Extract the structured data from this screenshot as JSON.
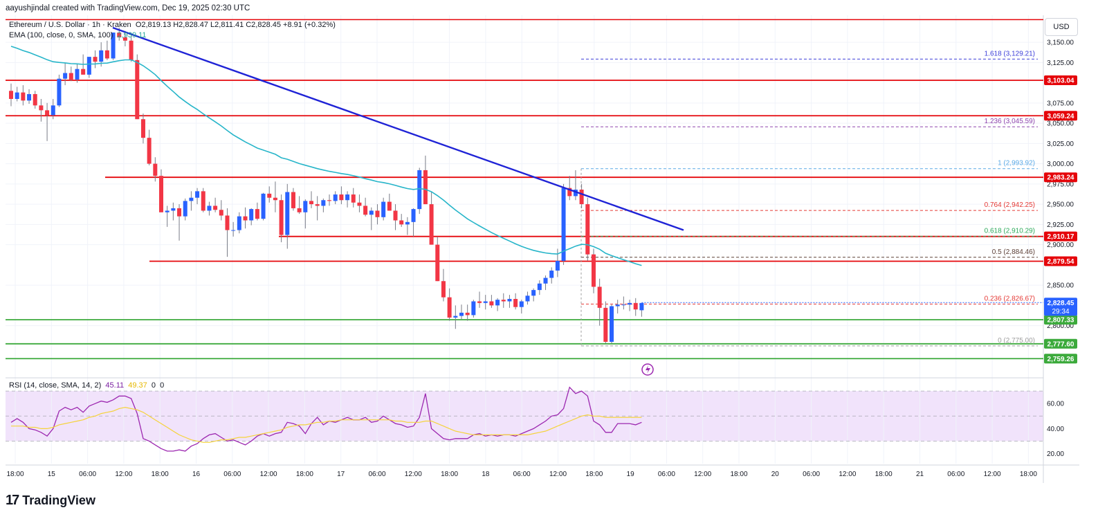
{
  "header": {
    "credit": "aayushjindal created with TradingView.com, Dec 19, 2025 02:30 UTC",
    "symbol": "Ethereum / U.S. Dollar · 1h · Kraken",
    "ohlc": "O2,819.13 H2,828.47 L2,811.41 C2,828.45 +8.91 (+0.32%)",
    "ema_label": "EMA (100, close, 0, SMA, 100)",
    "ema_value": "2,939.11",
    "currency_button": "USD"
  },
  "rsi_legend": {
    "label": "RSI (14, close, SMA, 14, 2)",
    "value": "45.11",
    "sma_value": "49.37",
    "extra1": "0",
    "extra2": "0"
  },
  "brand": {
    "name": "TradingView"
  },
  "colors": {
    "up": "#2962ff",
    "down": "#f23645",
    "ema": "#26b5c9",
    "trendline": "#1f23d6",
    "resistance": "#e5050a",
    "support": "#3caa3c",
    "rsi_line": "#9c27b0",
    "rsi_sma": "#f5d33a",
    "rsi_band": "#f1e3fb"
  },
  "chart_data": {
    "type": "candlestick",
    "title": "Ethereum / U.S. Dollar · 1h · Kraken",
    "price_axis_ticks": [
      "3,150.00",
      "3,125.00",
      "3,075.00",
      "3,050.00",
      "3,025.00",
      "3,000.00",
      "2,975.00",
      "2,950.00",
      "2,925.00",
      "2,900.00",
      "2,850.00",
      "2,800.00"
    ],
    "time_axis_ticks": [
      "18:00",
      "15",
      "06:00",
      "12:00",
      "18:00",
      "16",
      "06:00",
      "12:00",
      "18:00",
      "17",
      "06:00",
      "12:00",
      "18:00",
      "18",
      "06:00",
      "12:00",
      "18:00",
      "19",
      "06:00",
      "12:00",
      "18:00",
      "20",
      "06:00",
      "12:00",
      "18:00",
      "21",
      "06:00",
      "12:00",
      "18:00"
    ],
    "candles": [
      [
        3090,
        3099,
        3071,
        3080
      ],
      [
        3080,
        3095,
        3077,
        3088
      ],
      [
        3088,
        3097,
        3072,
        3078
      ],
      [
        3078,
        3092,
        3074,
        3086
      ],
      [
        3086,
        3090,
        3068,
        3072
      ],
      [
        3072,
        3080,
        3052,
        3066
      ],
      [
        3066,
        3075,
        3028,
        3060
      ],
      [
        3060,
        3080,
        3055,
        3072
      ],
      [
        3072,
        3110,
        3070,
        3105
      ],
      [
        3105,
        3125,
        3097,
        3112
      ],
      [
        3112,
        3120,
        3102,
        3104
      ],
      [
        3104,
        3123,
        3100,
        3117
      ],
      [
        3117,
        3135,
        3110,
        3110
      ],
      [
        3110,
        3132,
        3106,
        3132
      ],
      [
        3132,
        3140,
        3118,
        3126
      ],
      [
        3126,
        3150,
        3120,
        3140
      ],
      [
        3140,
        3152,
        3128,
        3130
      ],
      [
        3130,
        3162,
        3128,
        3162
      ],
      [
        3162,
        3168,
        3152,
        3156
      ],
      [
        3156,
        3164,
        3145,
        3152
      ],
      [
        3152,
        3158,
        3126,
        3128
      ],
      [
        3128,
        3135,
        3055,
        3055
      ],
      [
        3055,
        3062,
        3025,
        3032
      ],
      [
        3032,
        3042,
        2998,
        3000
      ],
      [
        3000,
        3008,
        2978,
        2985
      ],
      [
        2985,
        2993,
        2940,
        2940
      ],
      [
        2940,
        2948,
        2922,
        2942
      ],
      [
        2942,
        2952,
        2930,
        2945
      ],
      [
        2945,
        2950,
        2905,
        2935
      ],
      [
        2935,
        2957,
        2930,
        2954
      ],
      [
        2954,
        2966,
        2942,
        2958
      ],
      [
        2958,
        2970,
        2950,
        2966
      ],
      [
        2966,
        2970,
        2940,
        2942
      ],
      [
        2942,
        2953,
        2936,
        2948
      ],
      [
        2948,
        2958,
        2940,
        2943
      ],
      [
        2943,
        2955,
        2930,
        2936
      ],
      [
        2936,
        2945,
        2885,
        2918
      ],
      [
        2918,
        2928,
        2910,
        2918
      ],
      [
        2918,
        2940,
        2914,
        2935
      ],
      [
        2935,
        2946,
        2920,
        2930
      ],
      [
        2930,
        2945,
        2924,
        2944
      ],
      [
        2944,
        2952,
        2930,
        2932
      ],
      [
        2932,
        2964,
        2930,
        2963
      ],
      [
        2963,
        2972,
        2952,
        2958
      ],
      [
        2958,
        2978,
        2940,
        2955
      ],
      [
        2955,
        2962,
        2903,
        2912
      ],
      [
        2912,
        2975,
        2895,
        2965
      ],
      [
        2965,
        2970,
        2942,
        2945
      ],
      [
        2945,
        2960,
        2938,
        2940
      ],
      [
        2940,
        2956,
        2920,
        2954
      ],
      [
        2954,
        2966,
        2945,
        2950
      ],
      [
        2950,
        2960,
        2930,
        2948
      ],
      [
        2948,
        2957,
        2940,
        2955
      ],
      [
        2955,
        2962,
        2948,
        2954
      ],
      [
        2954,
        2966,
        2950,
        2962
      ],
      [
        2962,
        2972,
        2950,
        2955
      ],
      [
        2955,
        2966,
        2946,
        2962
      ],
      [
        2962,
        2970,
        2946,
        2952
      ],
      [
        2952,
        2962,
        2940,
        2948
      ],
      [
        2948,
        2958,
        2935,
        2937
      ],
      [
        2937,
        2946,
        2918,
        2942
      ],
      [
        2942,
        2950,
        2925,
        2934
      ],
      [
        2934,
        2958,
        2930,
        2953
      ],
      [
        2953,
        2963,
        2942,
        2942
      ],
      [
        2942,
        2950,
        2918,
        2930
      ],
      [
        2930,
        2938,
        2922,
        2925
      ],
      [
        2925,
        2934,
        2912,
        2928
      ],
      [
        2928,
        2945,
        2910,
        2944
      ],
      [
        2944,
        2995,
        2938,
        2992
      ],
      [
        2992,
        3010,
        2950,
        2950
      ],
      [
        2950,
        2965,
        2900,
        2900
      ],
      [
        2900,
        2910,
        2855,
        2855
      ],
      [
        2855,
        2870,
        2830,
        2835
      ],
      [
        2835,
        2846,
        2806,
        2810
      ],
      [
        2810,
        2825,
        2796,
        2812
      ],
      [
        2812,
        2826,
        2808,
        2816
      ],
      [
        2816,
        2826,
        2806,
        2813
      ],
      [
        2813,
        2832,
        2810,
        2830
      ],
      [
        2830,
        2842,
        2822,
        2828
      ],
      [
        2828,
        2838,
        2820,
        2830
      ],
      [
        2830,
        2838,
        2822,
        2825
      ],
      [
        2825,
        2834,
        2818,
        2832
      ],
      [
        2832,
        2840,
        2822,
        2830
      ],
      [
        2830,
        2838,
        2822,
        2833
      ],
      [
        2833,
        2840,
        2820,
        2823
      ],
      [
        2823,
        2832,
        2815,
        2830
      ],
      [
        2830,
        2842,
        2826,
        2837
      ],
      [
        2837,
        2846,
        2830,
        2844
      ],
      [
        2844,
        2856,
        2838,
        2852
      ],
      [
        2852,
        2862,
        2844,
        2859
      ],
      [
        2859,
        2872,
        2852,
        2868
      ],
      [
        2868,
        2895,
        2860,
        2880
      ],
      [
        2880,
        2975,
        2875,
        2970
      ],
      [
        2970,
        2985,
        2955,
        2960
      ],
      [
        2960,
        2992,
        2955,
        2968
      ],
      [
        2968,
        2975,
        2945,
        2950
      ],
      [
        2950,
        2958,
        2880,
        2888
      ],
      [
        2888,
        2895,
        2840,
        2848
      ],
      [
        2848,
        2858,
        2800,
        2822
      ],
      [
        2822,
        2830,
        2778,
        2780
      ],
      [
        2780,
        2826,
        2778,
        2824
      ],
      [
        2824,
        2832,
        2815,
        2826
      ],
      [
        2826,
        2836,
        2820,
        2826
      ],
      [
        2826,
        2832,
        2818,
        2828
      ],
      [
        2828,
        2834,
        2812,
        2820
      ],
      [
        2819,
        2828,
        2811,
        2828
      ]
    ],
    "ema_value_label": "2,939.11",
    "horizontal_levels": [
      {
        "label": "3,103.04",
        "value": 3103.04,
        "color": "red"
      },
      {
        "label": "3,059.24",
        "value": 3059.24,
        "color": "red"
      },
      {
        "label": "2,983.24",
        "value": 2983.24,
        "color": "red"
      },
      {
        "label": "2,910.17",
        "value": 2910.17,
        "color": "red"
      },
      {
        "label": "2,879.54",
        "value": 2879.54,
        "color": "red"
      },
      {
        "label": "2,807.33",
        "value": 2807.33,
        "color": "green"
      },
      {
        "label": "2,777.60",
        "value": 2777.6,
        "color": "green"
      },
      {
        "label": "2,759.26",
        "value": 2759.26,
        "color": "green"
      }
    ],
    "top_level": 3178,
    "current_price_label": "2,828.45",
    "countdown": "29:34",
    "fib_levels": [
      {
        "label": "1.618 (3,129.21)",
        "value": 3129.21,
        "color": "#3d3fd9"
      },
      {
        "label": "1.236 (3,045.59)",
        "value": 3045.59,
        "color": "#8e44ad"
      },
      {
        "label": "1 (2,993.92)",
        "value": 2993.92,
        "color": "#5aa9e6"
      },
      {
        "label": "0.764 (2,942.25)",
        "value": 2942.25,
        "color": "#e53935"
      },
      {
        "label": "0.618 (2,910.29)",
        "value": 2910.29,
        "color": "#2eaa5c"
      },
      {
        "label": "0.5 (2,884.46)",
        "value": 2884.46,
        "color": "#5d4037"
      },
      {
        "label": "0.236 (2,826.67)",
        "value": 2826.67,
        "color": "#e53935"
      },
      {
        "label": "0 (2,775.00)",
        "value": 2775.0,
        "color": "#9e9e9e"
      }
    ],
    "rsi_axis_ticks": [
      "60.00",
      "40.00",
      "20.00"
    ],
    "rsi_values": [
      45,
      48,
      45,
      40,
      39,
      37,
      34,
      40,
      54,
      57,
      55,
      57,
      53,
      58,
      60,
      62,
      61,
      63,
      66,
      66,
      64,
      52,
      32,
      30,
      27,
      24,
      22,
      22,
      23,
      22,
      26,
      28,
      32,
      35,
      36,
      33,
      30,
      31,
      29,
      27,
      30,
      34,
      36,
      34,
      36,
      37,
      45,
      44,
      42,
      36,
      44,
      49,
      43,
      46,
      45,
      47,
      49,
      47,
      47,
      49,
      45,
      46,
      50,
      47,
      44,
      43,
      41,
      42,
      49,
      68,
      40,
      36,
      32,
      31,
      32,
      32,
      32,
      35,
      36,
      34,
      35,
      34,
      35,
      35,
      34,
      36,
      38,
      40,
      43,
      46,
      50,
      51,
      56,
      73,
      68,
      70,
      66,
      46,
      43,
      37,
      37,
      44,
      44,
      44,
      43,
      45
    ],
    "rsi_sma_values": [
      42,
      42,
      42,
      41,
      41,
      40,
      40,
      41,
      43,
      44,
      45,
      46,
      47,
      49,
      50,
      52,
      53,
      54,
      56,
      57,
      56,
      55,
      53,
      50,
      47,
      44,
      41,
      38,
      35,
      33,
      31,
      30,
      29,
      29,
      30,
      31,
      31,
      32,
      33,
      33,
      34,
      35,
      36,
      37,
      38,
      39,
      41,
      42,
      43,
      43,
      44,
      45,
      45,
      46,
      46,
      47,
      47,
      47,
      47,
      47,
      47,
      47,
      47,
      47,
      46,
      46,
      45,
      45,
      45,
      46,
      46,
      44,
      42,
      40,
      38,
      37,
      36,
      35,
      35,
      35,
      35,
      35,
      35,
      35,
      35,
      35,
      35,
      36,
      37,
      38,
      40,
      42,
      44,
      46,
      48,
      50,
      51,
      50,
      50,
      49,
      49,
      49,
      49,
      49,
      49,
      49
    ]
  }
}
